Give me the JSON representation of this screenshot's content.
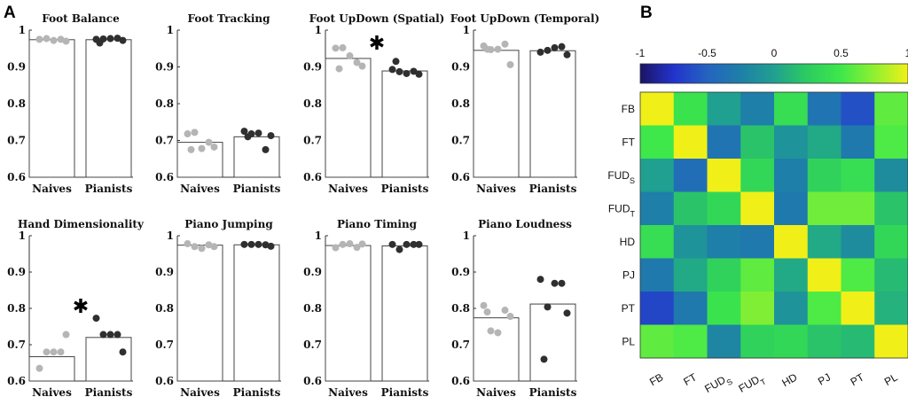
{
  "panel_labels": {
    "a": "A",
    "b": "B"
  },
  "chart_data": [
    {
      "type": "bar",
      "panel": "A",
      "categories": [
        "Naives",
        "Pianists"
      ],
      "ylim": [
        0.6,
        1
      ],
      "yticks": [
        "0.6",
        "0.7",
        "0.8",
        "0.9",
        "1"
      ],
      "colors": {
        "Naives": "#b5b5b5",
        "Pianists": "#2f2f2f"
      },
      "significance_marker": "✱",
      "subplots": [
        {
          "title": "Foot Balance",
          "bars": [
            0.974,
            0.974
          ],
          "points": [
            [
              0.975,
              0.977,
              0.972,
              0.975,
              0.97
            ],
            [
              0.975,
              0.976,
              0.977,
              0.978,
              0.972,
              0.965
            ]
          ],
          "significant": false
        },
        {
          "title": "Foot Tracking",
          "bars": [
            0.695,
            0.71
          ],
          "points": [
            [
              0.718,
              0.722,
              0.678,
              0.695,
              0.682,
              0.675
            ],
            [
              0.725,
              0.718,
              0.72,
              0.675,
              0.713,
              0.71
            ]
          ],
          "significant": false
        },
        {
          "title": "Foot UpDown (Spatial)",
          "bars": [
            0.923,
            0.889
          ],
          "points": [
            [
              0.951,
              0.952,
              0.93,
              0.912,
              0.902,
              0.895
            ],
            [
              0.893,
              0.887,
              0.882,
              0.888,
              0.88,
              0.915
            ]
          ],
          "significant": true
        },
        {
          "title": "Foot UpDown (Temporal)",
          "bars": [
            0.945,
            0.944
          ],
          "points": [
            [
              0.957,
              0.947,
              0.948,
              0.962,
              0.906,
              0.948
            ],
            [
              0.94,
              0.945,
              0.952,
              0.955,
              0.933
            ]
          ],
          "significant": false
        },
        {
          "title": "Hand Dimensionality",
          "bars": [
            0.667,
            0.72
          ],
          "points": [
            [
              0.635,
              0.68,
              0.68,
              0.68,
              0.728
            ],
            [
              0.773,
              0.728,
              0.728,
              0.728,
              0.68
            ]
          ],
          "significant": true
        },
        {
          "title": "Piano Jumping",
          "bars": [
            0.974,
            0.975
          ],
          "points": [
            [
              0.978,
              0.97,
              0.965,
              0.975,
              0.97
            ],
            [
              0.976,
              0.976,
              0.976,
              0.975,
              0.971
            ]
          ],
          "significant": false
        },
        {
          "title": "Piano Timing",
          "bars": [
            0.973,
            0.972
          ],
          "points": [
            [
              0.967,
              0.976,
              0.978,
              0.968,
              0.977
            ],
            [
              0.976,
              0.962,
              0.976,
              0.976,
              0.976
            ]
          ],
          "significant": false
        },
        {
          "title": "Piano Loudness",
          "bars": [
            0.774,
            0.812
          ],
          "points": [
            [
              0.808,
              0.738,
              0.733,
              0.795,
              0.778,
              0.79
            ],
            [
              0.88,
              0.804,
              0.869,
              0.869,
              0.787,
              0.66
            ]
          ],
          "significant": false
        }
      ]
    },
    {
      "type": "heatmap",
      "panel": "B",
      "rows": [
        "FB",
        "FT",
        "FUDS",
        "FUDT",
        "HD",
        "PJ",
        "PT",
        "PL"
      ],
      "row_labels": [
        [
          "FB",
          ""
        ],
        [
          "FT",
          ""
        ],
        [
          "FUD",
          "S"
        ],
        [
          "FUD",
          "T"
        ],
        [
          "HD",
          ""
        ],
        [
          "PJ",
          ""
        ],
        [
          "PT",
          ""
        ],
        [
          "PL",
          ""
        ]
      ],
      "colorbar": {
        "range": [
          -1,
          1
        ],
        "ticks": [
          "-1",
          "-0.5",
          "0",
          "0.5",
          "1"
        ],
        "colormap": [
          "#1b1464",
          "#2233cc",
          "#2563c0",
          "#1e7fa8",
          "#20a090",
          "#2ccc60",
          "#3ee84a",
          "#90f030",
          "#f0f018"
        ]
      },
      "values": [
        [
          1.0,
          0.45,
          0.0,
          -0.25,
          0.4,
          -0.35,
          -0.6,
          0.6
        ],
        [
          0.5,
          1.0,
          -0.35,
          0.2,
          -0.1,
          0.05,
          -0.3,
          0.55
        ],
        [
          0.0,
          -0.4,
          1.0,
          0.35,
          -0.25,
          0.3,
          0.4,
          -0.15
        ],
        [
          -0.25,
          0.2,
          0.35,
          1.0,
          -0.3,
          0.65,
          0.65,
          0.2
        ],
        [
          0.4,
          -0.1,
          -0.25,
          -0.3,
          1.0,
          0.05,
          -0.15,
          0.35
        ],
        [
          -0.3,
          0.05,
          0.3,
          0.6,
          0.05,
          1.0,
          0.55,
          0.15
        ],
        [
          -0.65,
          -0.3,
          0.45,
          0.7,
          -0.1,
          0.55,
          1.0,
          0.1
        ],
        [
          0.6,
          0.55,
          -0.2,
          0.3,
          0.35,
          0.2,
          0.15,
          1.0
        ]
      ]
    }
  ]
}
